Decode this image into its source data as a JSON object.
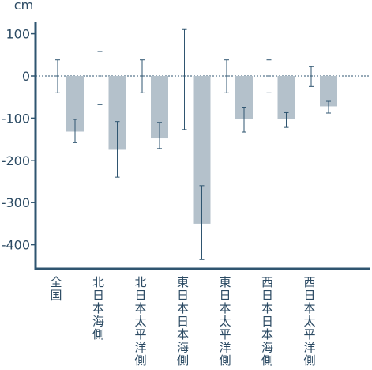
{
  "chart_data": {
    "type": "bar",
    "ylabel": "cm",
    "ylim": [
      -460,
      120
    ],
    "yticks": [
      100,
      0,
      -100,
      -200,
      -300,
      -400
    ],
    "categories": [
      "全国",
      "北日本海側",
      "北日本太平洋側",
      "東日本日本海側",
      "東日本太平洋側",
      "西日本日本海側",
      "西日本太平洋側"
    ],
    "reference": {
      "values": [
        0,
        0,
        0,
        0,
        0,
        0,
        0
      ],
      "err_low": [
        -40,
        -68,
        -40,
        -127,
        -40,
        -40,
        -25
      ],
      "err_high": [
        38,
        58,
        38,
        110,
        38,
        38,
        22
      ]
    },
    "series": [
      {
        "values": [
          -132,
          -175,
          -148,
          -350,
          -102,
          -103,
          -72
        ],
        "err_low": [
          -158,
          -240,
          -172,
          -435,
          -133,
          -122,
          -88
        ],
        "err_high": [
          -103,
          -108,
          -110,
          -260,
          -74,
          -87,
          -60
        ]
      }
    ],
    "grid": false,
    "zero_line": "dotted",
    "colors": {
      "bar": "#b4c1cb",
      "axis": "#2f5570",
      "error": "#2f5570",
      "text": "#2b4a63"
    }
  }
}
